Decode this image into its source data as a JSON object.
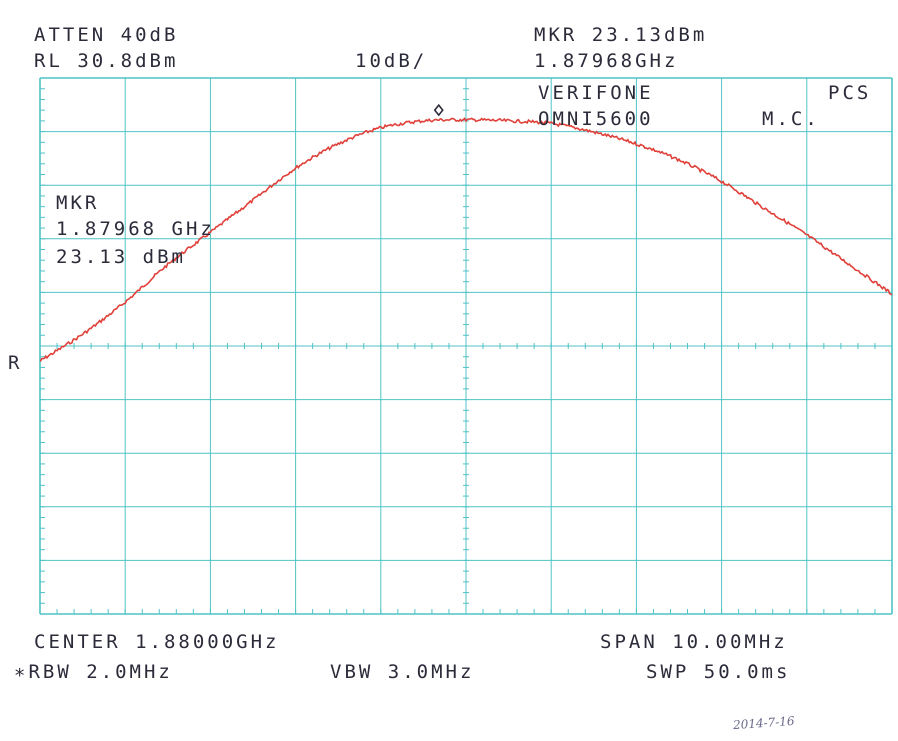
{
  "header": {
    "atten": "ATTEN 40dB",
    "ref_level": "RL 30.8dBm",
    "scale": "10dB/",
    "marker_readout": "MKR 23.13dBm",
    "marker_freq": "1.87968GHz",
    "device_line1": "VERIFONE",
    "device_line1b": "PCS",
    "device_line2": "OMNI5600",
    "device_line2b": "M.C."
  },
  "marker_box": {
    "title": "MKR",
    "freq": "1.87968 GHz",
    "level": "23.13 dBm"
  },
  "side_label": "R",
  "footer": {
    "center": "CENTER 1.88000GHz",
    "span": "SPAN 10.00MHz",
    "rbw": "∗RBW 2.0MHz",
    "vbw": "VBW 3.0MHz",
    "swp": "SWP 50.0ms"
  },
  "signature": "2014-7-16",
  "colors": {
    "grid": "#4fc3c7",
    "trace": "#e0403a",
    "text": "#2b2b3a"
  },
  "chart_data": {
    "type": "line",
    "title": "",
    "xlabel": "",
    "ylabel": "",
    "xlim": [
      1875.0,
      1885.0
    ],
    "ylim": [
      -69.2,
      30.8
    ],
    "x_units": "MHz",
    "y_units": "dBm",
    "grid": true,
    "x_divisions": 10,
    "y_divisions": 10,
    "series": [
      {
        "x": [
          1875.0,
          1875.5,
          1876.0,
          1876.5,
          1877.0,
          1877.5,
          1878.0,
          1878.5,
          1879.0,
          1879.5,
          1880.0,
          1880.5,
          1881.0,
          1881.5,
          1882.0,
          1882.5,
          1883.0,
          1883.5,
          1884.0,
          1884.5,
          1885.0
        ],
        "values": [
          -22.0,
          -17.0,
          -11.0,
          -4.0,
          2.0,
          8.0,
          14.0,
          18.5,
          21.5,
          22.8,
          23.0,
          22.8,
          22.3,
          20.7,
          18.5,
          15.5,
          11.5,
          6.5,
          1.5,
          -4.0,
          -9.5
        ]
      }
    ],
    "marker": {
      "x": 1879.68,
      "y": 23.13
    }
  }
}
